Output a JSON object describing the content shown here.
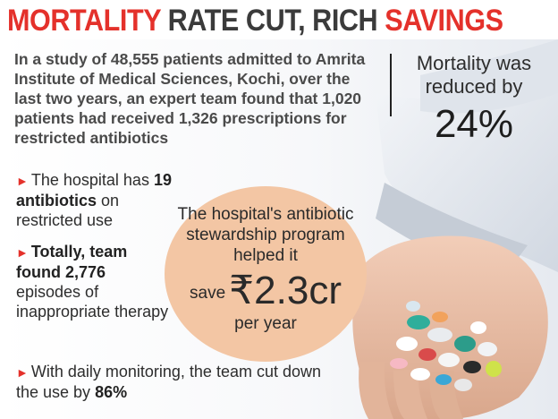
{
  "headline": {
    "part1": "MORTALITY",
    "part2": " RATE CUT, RICH ",
    "part3": "SAVINGS"
  },
  "intro": {
    "text": "In a study of 48,555 patients admitted to Amrita Institute of Medical Sciences, Kochi, over the last two years, an expert team found that 1,020 patients had received 1,326 prescriptions for restricted antibiotics"
  },
  "mortality": {
    "label": "Mortality was reduced by",
    "value": "24%"
  },
  "bullets": [
    {
      "before": "The hospital has ",
      "bold": "19 antibiotics",
      "after": " on restricted use"
    },
    {
      "before": "",
      "bold": "Totally, team found 2,776",
      "after": " episodes of inappropriate therapy"
    },
    {
      "before": "With daily monitoring, the team cut down the use by ",
      "bold": "86%",
      "after": ""
    }
  ],
  "callout": {
    "text": "The hospital's antibiotic stewardship program helped it",
    "save_word": "save",
    "amount": "₹2.3cr",
    "per_year": "per year"
  },
  "colors": {
    "accent_red": "#e4312b",
    "circle": "#f3c6a4",
    "text_dark": "#2d2d2d"
  }
}
